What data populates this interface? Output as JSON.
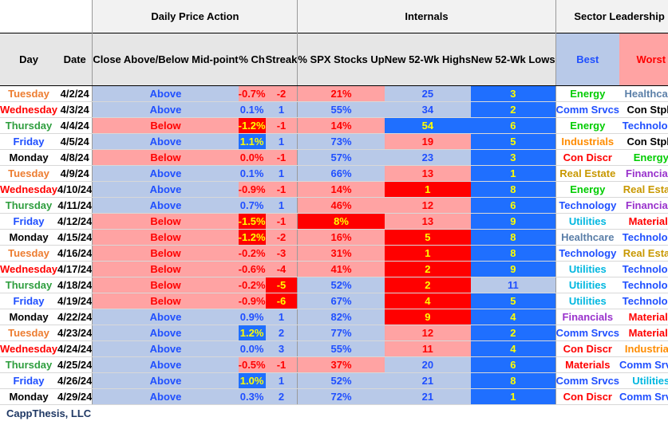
{
  "header": {
    "groups": {
      "daily": "Daily Price Action",
      "internals": "Internals",
      "sector": "Sector Leadership"
    },
    "columns": {
      "day": "Day",
      "date": "Date",
      "close": "Close Above/Below Mid-point",
      "pct": "% Ch",
      "streak": "Streak",
      "spx": "% SPX Stocks Up",
      "highs": "New 52-Wk Highs",
      "lows": "New 52-Wk Lows",
      "best": "Best",
      "worst": "Worst"
    }
  },
  "footer": {
    "brand": "CappThesis, LLC"
  },
  "colors": {
    "blue_bg": "#b8c9e8",
    "pink_bg": "#ffa3a3",
    "red_bg": "#ff0000",
    "bright_blue_bg": "#1f6fff",
    "blue_text": "#1f4fff",
    "red_text": "#ff0000",
    "yellow_text": "#ffff00",
    "white_text": "#ffffff"
  },
  "chart_data": {
    "type": "table",
    "title": "Daily Price Action / Internals / Sector Leadership",
    "columns": [
      "Day",
      "Date",
      "Close Above/Below Mid-point",
      "% Ch",
      "Streak",
      "% SPX Stocks Up",
      "New 52-Wk Highs",
      "New 52-Wk Lows",
      "Best",
      "Worst"
    ],
    "rows": [
      {
        "day": "Tuesday",
        "date": "4/2/24",
        "close": "Above",
        "pct": "-0.7%",
        "streak": "-2",
        "spx": "21%",
        "highs": "25",
        "lows": "3",
        "best": "Energy",
        "worst": "Healthcare"
      },
      {
        "day": "Wednesday",
        "date": "4/3/24",
        "close": "Above",
        "pct": "0.1%",
        "streak": "1",
        "spx": "55%",
        "highs": "34",
        "lows": "2",
        "best": "Comm Srvcs",
        "worst": "Con Stpls"
      },
      {
        "day": "Thursday",
        "date": "4/4/24",
        "close": "Below",
        "pct": "-1.2%",
        "streak": "-1",
        "spx": "14%",
        "highs": "54",
        "lows": "6",
        "best": "Energy",
        "worst": "Technology"
      },
      {
        "day": "Friday",
        "date": "4/5/24",
        "close": "Above",
        "pct": "1.1%",
        "streak": "1",
        "spx": "73%",
        "highs": "19",
        "lows": "5",
        "best": "Industrials",
        "worst": "Con Stpls"
      },
      {
        "day": "Monday",
        "date": "4/8/24",
        "close": "Below",
        "pct": "0.0%",
        "streak": "-1",
        "spx": "57%",
        "highs": "23",
        "lows": "3",
        "best": "Con Discr",
        "worst": "Energy"
      },
      {
        "day": "Tuesday",
        "date": "4/9/24",
        "close": "Above",
        "pct": "0.1%",
        "streak": "1",
        "spx": "66%",
        "highs": "13",
        "lows": "1",
        "best": "Real Estate",
        "worst": "Financials"
      },
      {
        "day": "Wednesday",
        "date": "4/10/24",
        "close": "Above",
        "pct": "-0.9%",
        "streak": "-1",
        "spx": "14%",
        "highs": "1",
        "lows": "8",
        "best": "Energy",
        "worst": "Real Estate"
      },
      {
        "day": "Thursday",
        "date": "4/11/24",
        "close": "Above",
        "pct": "0.7%",
        "streak": "1",
        "spx": "46%",
        "highs": "12",
        "lows": "6",
        "best": "Technology",
        "worst": "Financials"
      },
      {
        "day": "Friday",
        "date": "4/12/24",
        "close": "Below",
        "pct": "-1.5%",
        "streak": "-1",
        "spx": "8%",
        "highs": "13",
        "lows": "9",
        "best": "Utilities",
        "worst": "Materials"
      },
      {
        "day": "Monday",
        "date": "4/15/24",
        "close": "Below",
        "pct": "-1.2%",
        "streak": "-2",
        "spx": "16%",
        "highs": "5",
        "lows": "8",
        "best": "Healthcare",
        "worst": "Technology"
      },
      {
        "day": "Tuesday",
        "date": "4/16/24",
        "close": "Below",
        "pct": "-0.2%",
        "streak": "-3",
        "spx": "31%",
        "highs": "1",
        "lows": "8",
        "best": "Technology",
        "worst": "Real Estate"
      },
      {
        "day": "Wednesday",
        "date": "4/17/24",
        "close": "Below",
        "pct": "-0.6%",
        "streak": "-4",
        "spx": "41%",
        "highs": "2",
        "lows": "9",
        "best": "Utilities",
        "worst": "Technology"
      },
      {
        "day": "Thursday",
        "date": "4/18/24",
        "close": "Below",
        "pct": "-0.2%",
        "streak": "-5",
        "spx": "52%",
        "highs": "2",
        "lows": "11",
        "best": "Utilities",
        "worst": "Technology"
      },
      {
        "day": "Friday",
        "date": "4/19/24",
        "close": "Below",
        "pct": "-0.9%",
        "streak": "-6",
        "spx": "67%",
        "highs": "4",
        "lows": "5",
        "best": "Utilities",
        "worst": "Technology"
      },
      {
        "day": "Monday",
        "date": "4/22/24",
        "close": "Above",
        "pct": "0.9%",
        "streak": "1",
        "spx": "82%",
        "highs": "9",
        "lows": "4",
        "best": "Financials",
        "worst": "Materials"
      },
      {
        "day": "Tuesday",
        "date": "4/23/24",
        "close": "Above",
        "pct": "1.2%",
        "streak": "2",
        "spx": "77%",
        "highs": "12",
        "lows": "2",
        "best": "Comm Srvcs",
        "worst": "Materials"
      },
      {
        "day": "Wednesday",
        "date": "4/24/24",
        "close": "Above",
        "pct": "0.0%",
        "streak": "3",
        "spx": "55%",
        "highs": "11",
        "lows": "4",
        "best": "Con Discr",
        "worst": "Industrials"
      },
      {
        "day": "Thursday",
        "date": "4/25/24",
        "close": "Above",
        "pct": "-0.5%",
        "streak": "-1",
        "spx": "37%",
        "highs": "20",
        "lows": "6",
        "best": "Materials",
        "worst": "Comm Srvcs"
      },
      {
        "day": "Friday",
        "date": "4/26/24",
        "close": "Above",
        "pct": "1.0%",
        "streak": "1",
        "spx": "52%",
        "highs": "21",
        "lows": "8",
        "best": "Comm Srvcs",
        "worst": "Utilities"
      },
      {
        "day": "Monday",
        "date": "4/29/24",
        "close": "Above",
        "pct": "0.3%",
        "streak": "2",
        "spx": "72%",
        "highs": "21",
        "lows": "1",
        "best": "Con Discr",
        "worst": "Comm Srvcs"
      }
    ]
  }
}
